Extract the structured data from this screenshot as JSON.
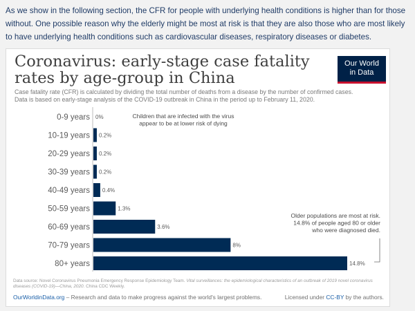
{
  "intro_text": "As we show in the following section, the CFR for people with underlying health conditions is higher than for those without. One possible reason why the elderly might be most at risk is that they are also those who are most likely to have underlying health conditions such as cardiovascular diseases, respiratory diseases or diabetes.",
  "card": {
    "title": "Coronavirus: early-stage case fatality rates by age-group in China",
    "logo_line1": "Our World",
    "logo_line2": "in Data",
    "subtitle_line1": "Case fatality rate (CFR) is calculated by dividing the total number of deaths from a disease by the number of confirmed cases.",
    "subtitle_line2": "Data is based on early-stage analysis of the COVID-19 outbreak in China in the period up to February 11, 2020.",
    "source_prefix": "Data source: Novel Coronavirus Pneumonia Emergency Response Epidemiology Team.",
    "source_italic": "Vital surveillances: the epidemiological characteristics of an outbreak of 2019 novel coronavirus diseases (COVID-19)—China, 2020.",
    "source_suffix": "China CDC Weekly.",
    "owid_link": "OurWorldinData.org",
    "tagline": "– Research and data to make progress against the world's largest problems.",
    "license_prefix": "Licensed under",
    "license_link": "CC-BY",
    "license_suffix": "by the authors."
  },
  "chart_data": {
    "type": "bar",
    "orientation": "horizontal",
    "title": "Coronavirus: early-stage case fatality rates by age-group in China",
    "categories": [
      "0-9 years",
      "10-19 years",
      "20-29 years",
      "30-39 years",
      "40-49 years",
      "50-59 years",
      "60-69 years",
      "70-79 years",
      "80+ years"
    ],
    "values": [
      0,
      0.2,
      0.2,
      0.2,
      0.4,
      1.3,
      3.6,
      8,
      14.8
    ],
    "value_labels": [
      "0%",
      "0.2%",
      "0.2%",
      "0.2%",
      "0.4%",
      "1.3%",
      "3.6%",
      "8%",
      "14.8%"
    ],
    "xlim": [
      0,
      14.8
    ],
    "unit": "%",
    "bar_color": "#002b55",
    "annotations": [
      {
        "lines": [
          "Children that are infected with the virus",
          "appear to be at lower risk of dying"
        ]
      },
      {
        "lines": [
          "Older populations are most at risk.",
          "14.8% of people aged 80 or older",
          "who were diagnosed died."
        ]
      }
    ]
  }
}
